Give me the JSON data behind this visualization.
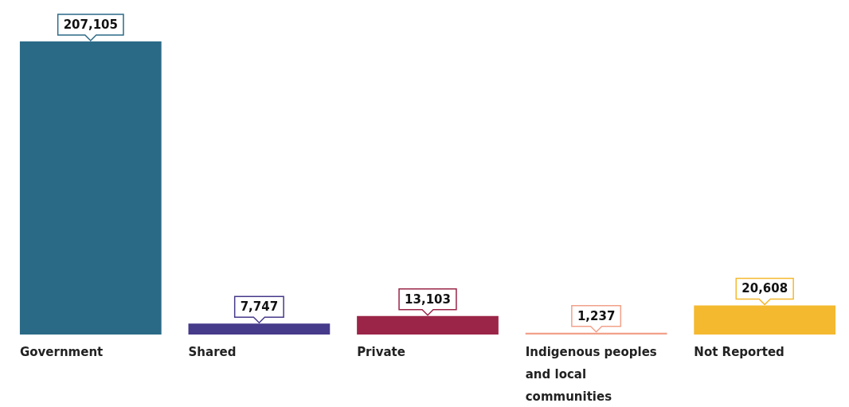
{
  "chart_data": {
    "type": "bar",
    "categories": [
      "Government",
      "Shared",
      "Private",
      "Indigenous peoples and local communities",
      "Not Reported"
    ],
    "values": [
      207105,
      7747,
      13103,
      1237,
      20608
    ],
    "colors": [
      "#2b6a87",
      "#463a8a",
      "#9b2548",
      "#f2a18a",
      "#f4b92f"
    ],
    "value_labels": [
      "207,105",
      "7,747",
      "13,103",
      "1,237",
      "20,608"
    ],
    "grid": false,
    "legend": false
  }
}
